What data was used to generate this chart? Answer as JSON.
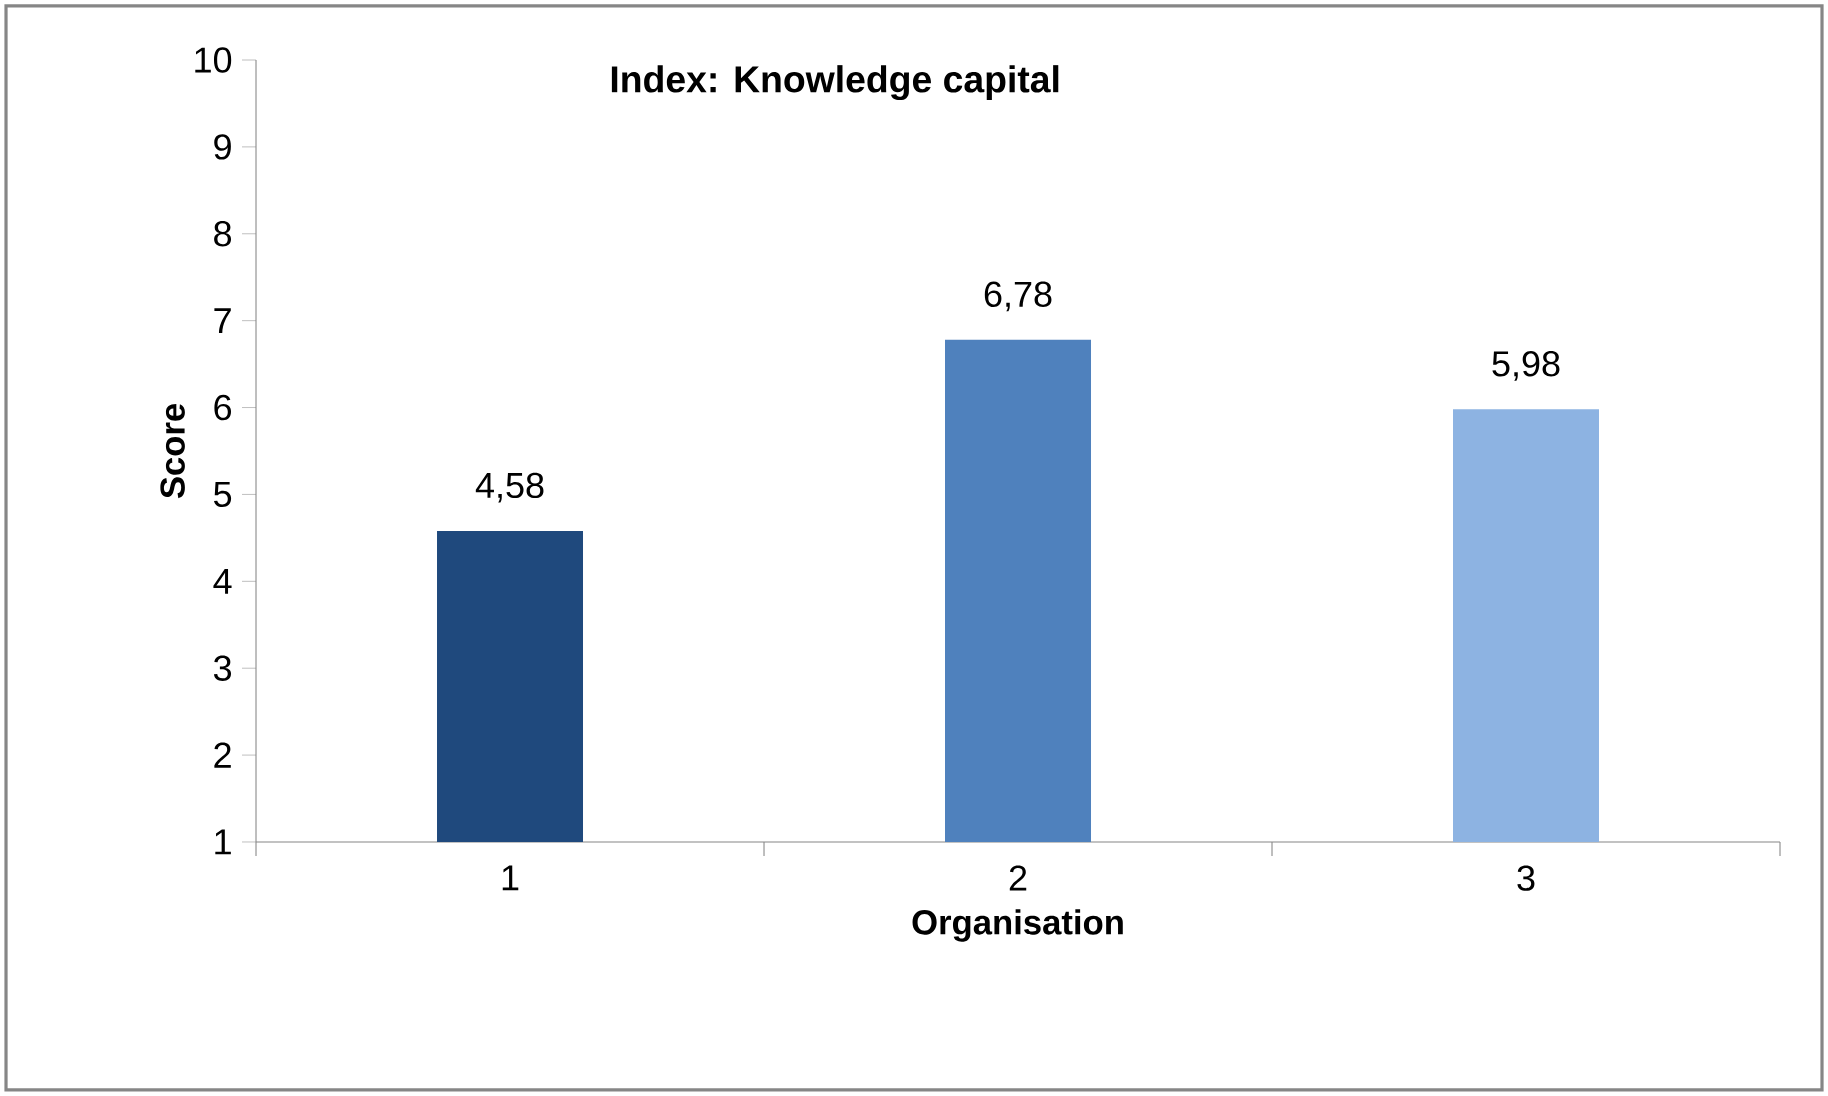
{
  "chart_data": {
    "type": "bar",
    "title": "Index:  Knowledge capital",
    "xlabel": "Organisation",
    "ylabel": "Score",
    "categories": [
      "1",
      "2",
      "3"
    ],
    "values": [
      4.58,
      6.78,
      5.98
    ],
    "value_labels": [
      "4,58",
      "6,78",
      "5,98"
    ],
    "colors": [
      "#1f497d",
      "#4f81bd",
      "#8db3e2"
    ],
    "ylim": [
      1,
      10
    ],
    "yticks": [
      1,
      2,
      3,
      4,
      5,
      6,
      7,
      8,
      9,
      10
    ]
  }
}
